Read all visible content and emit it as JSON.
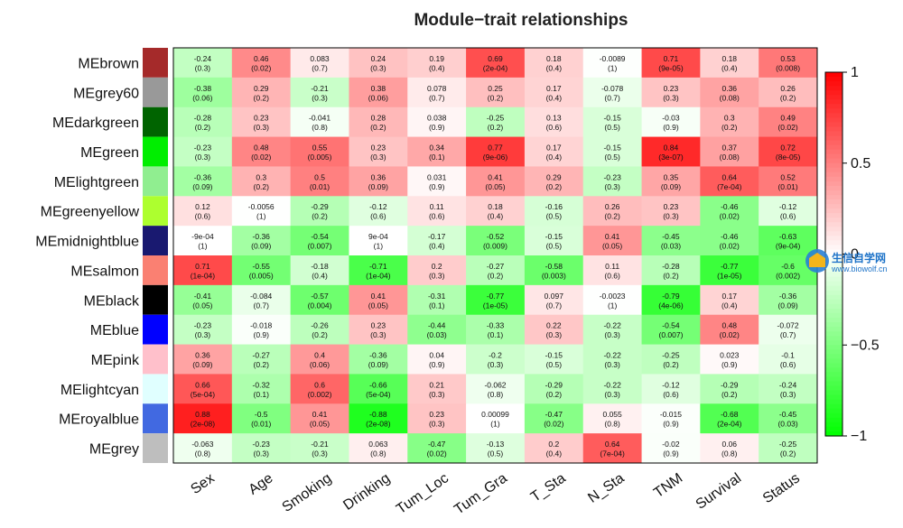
{
  "watermark": {
    "name": "生信自学网",
    "url": "www.biowolf.cn"
  },
  "chart_data": {
    "type": "heatmap",
    "title": "Module−trait relationships",
    "rows": [
      "MEbrown",
      "MEgrey60",
      "MEdarkgreen",
      "MEgreen",
      "MElightgreen",
      "MEgreenyellow",
      "MEmidnightblue",
      "MEsalmon",
      "MEblack",
      "MEblue",
      "MEpink",
      "MElightcyan",
      "MEroyalblue",
      "MEgrey"
    ],
    "row_colors": [
      "#a52a2a",
      "#999999",
      "#006400",
      "#00ee00",
      "#90ee90",
      "#adff2f",
      "#191970",
      "#fa8072",
      "#000000",
      "#0000ff",
      "#ffc0cb",
      "#e0ffff",
      "#4169e1",
      "#bebebe"
    ],
    "columns": [
      "Sex",
      "Age",
      "Smoking",
      "Drinking",
      "Tum_Loc",
      "Tum_Gra",
      "T_Sta",
      "N_Sta",
      "TNM",
      "Survival",
      "Status"
    ],
    "values": [
      [
        -0.24,
        0.46,
        0.083,
        0.24,
        0.19,
        0.69,
        0.18,
        -0.0089,
        0.71,
        0.18,
        0.53
      ],
      [
        -0.38,
        0.29,
        -0.21,
        0.38,
        0.078,
        0.25,
        0.17,
        -0.078,
        0.23,
        0.36,
        0.26
      ],
      [
        -0.28,
        0.23,
        -0.041,
        0.28,
        0.038,
        -0.25,
        0.13,
        -0.15,
        -0.03,
        0.3,
        0.49
      ],
      [
        -0.23,
        0.48,
        0.55,
        0.23,
        0.34,
        0.77,
        0.17,
        -0.15,
        0.84,
        0.37,
        0.72
      ],
      [
        -0.36,
        0.3,
        0.5,
        0.36,
        0.031,
        0.41,
        0.29,
        -0.23,
        0.35,
        0.64,
        0.52
      ],
      [
        0.12,
        -0.0056,
        -0.29,
        -0.12,
        0.11,
        0.18,
        -0.16,
        0.26,
        0.23,
        -0.46,
        -0.12
      ],
      [
        -0.0009,
        -0.36,
        -0.54,
        0.0009,
        -0.17,
        -0.52,
        -0.15,
        0.41,
        -0.45,
        -0.46,
        -0.63
      ],
      [
        0.71,
        -0.55,
        -0.18,
        -0.71,
        0.2,
        -0.27,
        -0.58,
        0.11,
        -0.28,
        -0.77,
        -0.6
      ],
      [
        -0.41,
        -0.084,
        -0.57,
        0.41,
        -0.31,
        -0.77,
        0.097,
        -0.0023,
        -0.79,
        0.17,
        -0.36
      ],
      [
        -0.23,
        -0.018,
        -0.26,
        0.23,
        -0.44,
        -0.33,
        0.22,
        -0.22,
        -0.54,
        0.48,
        -0.072
      ],
      [
        0.36,
        -0.27,
        0.4,
        -0.36,
        0.04,
        -0.2,
        -0.15,
        -0.22,
        -0.25,
        0.023,
        -0.1
      ],
      [
        0.66,
        -0.32,
        0.6,
        -0.66,
        0.21,
        -0.062,
        -0.29,
        -0.22,
        -0.12,
        -0.29,
        -0.24
      ],
      [
        0.88,
        -0.5,
        0.41,
        -0.88,
        0.23,
        0.00099,
        -0.47,
        0.055,
        -0.015,
        -0.68,
        -0.45
      ],
      [
        -0.063,
        -0.23,
        -0.21,
        0.063,
        -0.47,
        -0.13,
        0.2,
        0.64,
        -0.02,
        0.06,
        -0.25
      ]
    ],
    "value_labels": [
      [
        "-0.24",
        "0.46",
        "0.083",
        "0.24",
        "0.19",
        "0.69",
        "0.18",
        "-0.0089",
        "0.71",
        "0.18",
        "0.53"
      ],
      [
        "-0.38",
        "0.29",
        "-0.21",
        "0.38",
        "0.078",
        "0.25",
        "0.17",
        "-0.078",
        "0.23",
        "0.36",
        "0.26"
      ],
      [
        "-0.28",
        "0.23",
        "-0.041",
        "0.28",
        "0.038",
        "-0.25",
        "0.13",
        "-0.15",
        "-0.03",
        "0.3",
        "0.49"
      ],
      [
        "-0.23",
        "0.48",
        "0.55",
        "0.23",
        "0.34",
        "0.77",
        "0.17",
        "-0.15",
        "0.84",
        "0.37",
        "0.72"
      ],
      [
        "-0.36",
        "0.3",
        "0.5",
        "0.36",
        "0.031",
        "0.41",
        "0.29",
        "-0.23",
        "0.35",
        "0.64",
        "0.52"
      ],
      [
        "0.12",
        "-0.0056",
        "-0.29",
        "-0.12",
        "0.11",
        "0.18",
        "-0.16",
        "0.26",
        "0.23",
        "-0.46",
        "-0.12"
      ],
      [
        "-9e-04",
        "-0.36",
        "-0.54",
        "9e-04",
        "-0.17",
        "-0.52",
        "-0.15",
        "0.41",
        "-0.45",
        "-0.46",
        "-0.63"
      ],
      [
        "0.71",
        "-0.55",
        "-0.18",
        "-0.71",
        "0.2",
        "-0.27",
        "-0.58",
        "0.11",
        "-0.28",
        "-0.77",
        "-0.6"
      ],
      [
        "-0.41",
        "-0.084",
        "-0.57",
        "0.41",
        "-0.31",
        "-0.77",
        "0.097",
        "-0.0023",
        "-0.79",
        "0.17",
        "-0.36"
      ],
      [
        "-0.23",
        "-0.018",
        "-0.26",
        "0.23",
        "-0.44",
        "-0.33",
        "0.22",
        "-0.22",
        "-0.54",
        "0.48",
        "-0.072"
      ],
      [
        "0.36",
        "-0.27",
        "0.4",
        "-0.36",
        "0.04",
        "-0.2",
        "-0.15",
        "-0.22",
        "-0.25",
        "0.023",
        "-0.1"
      ],
      [
        "0.66",
        "-0.32",
        "0.6",
        "-0.66",
        "0.21",
        "-0.062",
        "-0.29",
        "-0.22",
        "-0.12",
        "-0.29",
        "-0.24"
      ],
      [
        "0.88",
        "-0.5",
        "0.41",
        "-0.88",
        "0.23",
        "0.00099",
        "-0.47",
        "0.055",
        "-0.015",
        "-0.68",
        "-0.45"
      ],
      [
        "-0.063",
        "-0.23",
        "-0.21",
        "0.063",
        "-0.47",
        "-0.13",
        "0.2",
        "0.64",
        "-0.02",
        "0.06",
        "-0.25"
      ]
    ],
    "p_labels": [
      [
        "(0.3)",
        "(0.02)",
        "(0.7)",
        "(0.3)",
        "(0.4)",
        "(2e-04)",
        "(0.4)",
        "(1)",
        "(9e-05)",
        "(0.4)",
        "(0.008)"
      ],
      [
        "(0.06)",
        "(0.2)",
        "(0.3)",
        "(0.06)",
        "(0.7)",
        "(0.2)",
        "(0.4)",
        "(0.7)",
        "(0.3)",
        "(0.08)",
        "(0.2)"
      ],
      [
        "(0.2)",
        "(0.3)",
        "(0.8)",
        "(0.2)",
        "(0.9)",
        "(0.2)",
        "(0.6)",
        "(0.5)",
        "(0.9)",
        "(0.2)",
        "(0.02)"
      ],
      [
        "(0.3)",
        "(0.02)",
        "(0.005)",
        "(0.3)",
        "(0.1)",
        "(9e-06)",
        "(0.4)",
        "(0.5)",
        "(3e-07)",
        "(0.08)",
        "(8e-05)"
      ],
      [
        "(0.09)",
        "(0.2)",
        "(0.01)",
        "(0.09)",
        "(0.9)",
        "(0.05)",
        "(0.2)",
        "(0.3)",
        "(0.09)",
        "(7e-04)",
        "(0.01)"
      ],
      [
        "(0.6)",
        "(1)",
        "(0.2)",
        "(0.6)",
        "(0.6)",
        "(0.4)",
        "(0.5)",
        "(0.2)",
        "(0.3)",
        "(0.02)",
        "(0.6)"
      ],
      [
        "(1)",
        "(0.09)",
        "(0.007)",
        "(1)",
        "(0.4)",
        "(0.009)",
        "(0.5)",
        "(0.05)",
        "(0.03)",
        "(0.02)",
        "(9e-04)"
      ],
      [
        "(1e-04)",
        "(0.005)",
        "(0.4)",
        "(1e-04)",
        "(0.3)",
        "(0.2)",
        "(0.003)",
        "(0.6)",
        "(0.2)",
        "(1e-05)",
        "(0.002)"
      ],
      [
        "(0.05)",
        "(0.7)",
        "(0.004)",
        "(0.05)",
        "(0.1)",
        "(1e-05)",
        "(0.7)",
        "(1)",
        "(4e-06)",
        "(0.4)",
        "(0.09)"
      ],
      [
        "(0.3)",
        "(0.9)",
        "(0.2)",
        "(0.3)",
        "(0.03)",
        "(0.1)",
        "(0.3)",
        "(0.3)",
        "(0.007)",
        "(0.02)",
        "(0.7)"
      ],
      [
        "(0.09)",
        "(0.2)",
        "(0.06)",
        "(0.09)",
        "(0.9)",
        "(0.3)",
        "(0.5)",
        "(0.3)",
        "(0.2)",
        "(0.9)",
        "(0.6)"
      ],
      [
        "(5e-04)",
        "(0.1)",
        "(0.002)",
        "(5e-04)",
        "(0.3)",
        "(0.8)",
        "(0.2)",
        "(0.3)",
        "(0.6)",
        "(0.2)",
        "(0.3)"
      ],
      [
        "(2e-08)",
        "(0.01)",
        "(0.05)",
        "(2e-08)",
        "(0.3)",
        "(1)",
        "(0.02)",
        "(0.8)",
        "(0.9)",
        "(2e-04)",
        "(0.03)"
      ],
      [
        "(0.8)",
        "(0.3)",
        "(0.3)",
        "(0.8)",
        "(0.02)",
        "(0.5)",
        "(0.4)",
        "(7e-04)",
        "(0.9)",
        "(0.8)",
        "(0.2)"
      ]
    ],
    "color_scale": {
      "low": "#00ff00",
      "mid": "#ffffff",
      "high": "#ff0000",
      "range": [
        -1,
        1
      ]
    },
    "legend": {
      "ticks": [
        1,
        0.5,
        0,
        -0.5,
        -1
      ],
      "tick_labels": [
        "1",
        "0.5",
        "0",
        "−0.5",
        "−1"
      ],
      "placement": "right"
    }
  }
}
